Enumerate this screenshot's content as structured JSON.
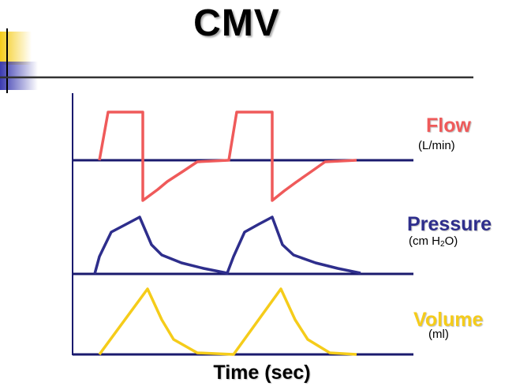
{
  "title": "CMV",
  "x_label": "Time (sec)",
  "labels": {
    "flow": {
      "name": "Flow",
      "unit": "(L/min)"
    },
    "pressure": {
      "name": "Pressure",
      "unit_prefix": "(cm H",
      "unit_sub": "2",
      "unit_suffix": "O)"
    },
    "volume": {
      "name": "Volume",
      "unit": "(ml)"
    }
  },
  "colors": {
    "flow": "#ef5a5a",
    "pressure": "#2e2e8c",
    "volume": "#f5cc1a",
    "baseline": "#1a1a6e",
    "deco_yellow": "#f5cc1a",
    "deco_blue": "#3a3ab0"
  }
}
